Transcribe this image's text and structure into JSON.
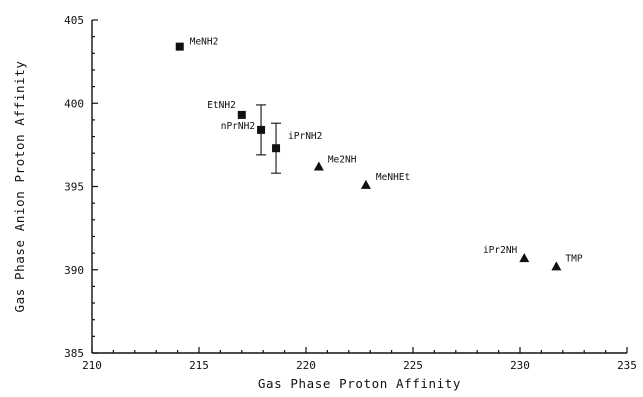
{
  "chart_data": {
    "type": "scatter",
    "title": "",
    "xlabel": "Gas Phase Proton Affinity",
    "ylabel": "Gas Phase Anion Proton Affinity",
    "xlim": [
      210,
      235
    ],
    "ylim": [
      385,
      405
    ],
    "xticks": [
      210,
      215,
      220,
      225,
      230,
      235
    ],
    "yticks": [
      385,
      390,
      395,
      400,
      405
    ],
    "grid": false,
    "legend": "none",
    "points": [
      {
        "label": "MeNH2",
        "x": 214.1,
        "y": 403.4,
        "marker": "square"
      },
      {
        "label": "EtNH2",
        "x": 217.0,
        "y": 399.3,
        "marker": "square"
      },
      {
        "label": "nPrNH2",
        "x": 217.9,
        "y": 398.4,
        "marker": "square",
        "error": [
          396.9,
          399.9
        ]
      },
      {
        "label": "iPrNH2",
        "x": 218.6,
        "y": 397.3,
        "marker": "square",
        "error": [
          395.8,
          398.8
        ]
      },
      {
        "label": "Me2NH",
        "x": 220.6,
        "y": 396.2,
        "marker": "triangle"
      },
      {
        "label": "MeNHEt",
        "x": 222.8,
        "y": 395.1,
        "marker": "triangle"
      },
      {
        "label": "iPr2NH",
        "x": 230.2,
        "y": 390.7,
        "marker": "triangle"
      },
      {
        "label": "TMP",
        "x": 231.7,
        "y": 390.2,
        "marker": "triangle"
      }
    ]
  }
}
